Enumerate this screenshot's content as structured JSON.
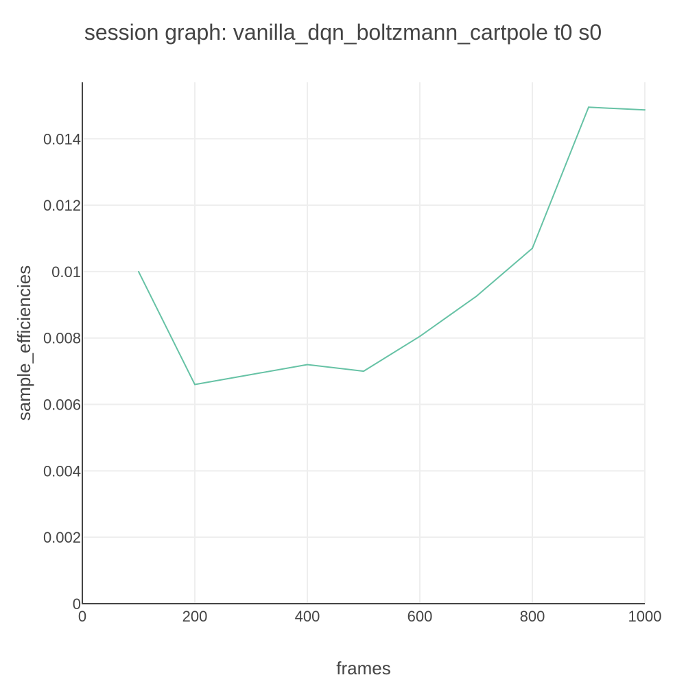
{
  "chart_data": {
    "type": "line",
    "title": "session graph: vanilla_dqn_boltzmann_cartpole t0 s0",
    "xlabel": "frames",
    "ylabel": "sample_efficiencies",
    "xlim": [
      0,
      1000
    ],
    "ylim": [
      0,
      0.0157
    ],
    "x_ticks": [
      0,
      200,
      400,
      600,
      800,
      1000
    ],
    "x_tick_labels": [
      "0",
      "200",
      "400",
      "600",
      "800",
      "1000"
    ],
    "y_ticks": [
      0,
      0.002,
      0.004,
      0.006,
      0.008,
      0.01,
      0.012,
      0.014
    ],
    "y_tick_labels": [
      "0",
      "0.002",
      "0.004",
      "0.006",
      "0.008",
      "0.01",
      "0.012",
      "0.014"
    ],
    "grid": true,
    "series": [
      {
        "color": "#66c2a5",
        "x": [
          100,
          200,
          300,
          400,
          500,
          600,
          700,
          800,
          900,
          1000
        ],
        "y": [
          0.01,
          0.0066,
          0.0069,
          0.0072,
          0.007,
          0.00805,
          0.00925,
          0.0107,
          0.01495,
          0.01487
        ]
      }
    ]
  }
}
